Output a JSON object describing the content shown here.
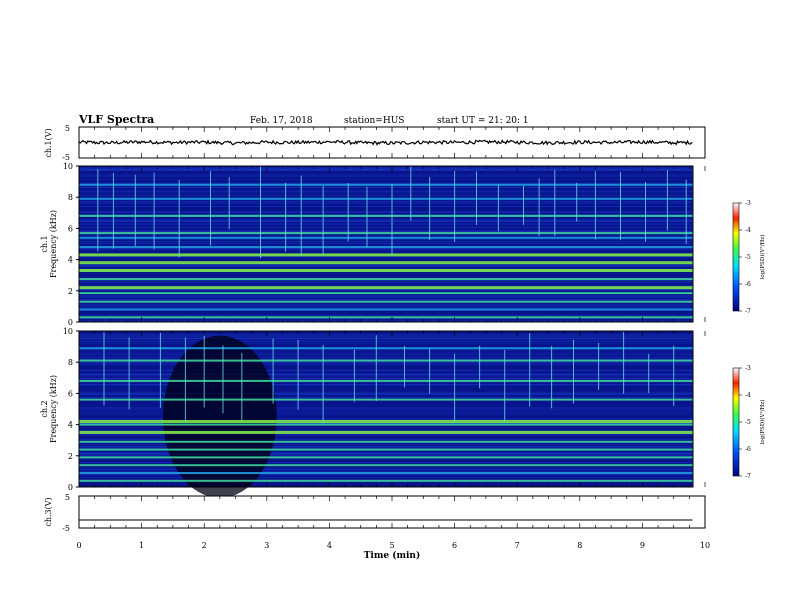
{
  "header": {
    "title": "VLF Spectra",
    "date": "Feb. 17, 2018",
    "station": "station=HUS",
    "start": "start  UT =   21: 20: 1"
  },
  "colors": {
    "spectrogram_background": "#08148c",
    "band_colors": [
      "#1a46d8",
      "#1e9be0",
      "#3cd29a",
      "#7ee84a"
    ],
    "colorbar": [
      "#00007a",
      "#0050ff",
      "#00e0ff",
      "#40ff40",
      "#ffff00",
      "#ff2000",
      "#ffffff"
    ]
  },
  "chart_data": [
    {
      "type": "line",
      "name": "ch1-waveform",
      "ylabel": "ch.1(V)",
      "ylim": [
        -5,
        5
      ],
      "yticks": [
        "5",
        "-5"
      ],
      "note_visible": "noisy waveform centered near 0",
      "x": [
        0,
        0.5,
        1,
        1.5,
        2,
        2.5,
        3,
        3.5,
        4,
        4.5,
        5,
        5.5,
        6,
        6.5,
        7,
        7.5,
        8,
        8.5,
        9,
        9.5,
        9.8
      ],
      "values": [
        0.1,
        -0.1,
        0.2,
        0.0,
        0.1,
        -0.2,
        0.1,
        0.0,
        0.2,
        -0.1,
        -0.2,
        0.1,
        0.0,
        0.2,
        0.1,
        -0.1,
        0.1,
        0.0,
        0.2,
        -0.1,
        0.0
      ]
    },
    {
      "type": "heatmap",
      "name": "ch1-spectrogram",
      "ylabel": "ch.1",
      "ylabel2": "Frequency (kHz)",
      "ylim": [
        0,
        10
      ],
      "yticks": [
        "0",
        "2",
        "4",
        "6",
        "8",
        "10"
      ],
      "colorbar": {
        "label": "log(PSD)(V²/Hz)",
        "ticks": [
          "-3",
          "-4",
          "-5",
          "-6",
          "-7"
        ],
        "range": [
          -7,
          -3
        ]
      },
      "bands_khz": [
        {
          "f": 0.3,
          "level": 2
        },
        {
          "f": 0.8,
          "level": 1
        },
        {
          "f": 1.3,
          "level": 2
        },
        {
          "f": 1.85,
          "level": 2
        },
        {
          "f": 2.2,
          "level": 3
        },
        {
          "f": 2.75,
          "level": 2
        },
        {
          "f": 3.3,
          "level": 3
        },
        {
          "f": 3.8,
          "level": 3
        },
        {
          "f": 4.3,
          "level": 3
        },
        {
          "f": 4.8,
          "level": 1
        },
        {
          "f": 5.4,
          "level": 1
        },
        {
          "f": 5.7,
          "level": 2
        },
        {
          "f": 6.8,
          "level": 2
        },
        {
          "f": 7.9,
          "level": 1
        },
        {
          "f": 8.8,
          "level": 1
        }
      ],
      "spikes_min": [
        0.3,
        0.55,
        0.9,
        1.2,
        1.6,
        2.1,
        2.4,
        2.9,
        3.3,
        3.55,
        3.9,
        4.3,
        4.6,
        5.0,
        5.3,
        5.6,
        6.0,
        6.35,
        6.7,
        7.1,
        7.35,
        7.6,
        7.95,
        8.25,
        8.65,
        9.05,
        9.4,
        9.7
      ]
    },
    {
      "type": "heatmap",
      "name": "ch2-spectrogram",
      "ylabel": "ch.2",
      "ylabel2": "Frequency (kHz)",
      "ylim": [
        0,
        10
      ],
      "yticks": [
        "0",
        "2",
        "4",
        "6",
        "8",
        "10"
      ],
      "colorbar": {
        "label": "log(PSD)(V²/Hz)",
        "ticks": [
          "-3",
          "-4",
          "-5",
          "-6",
          "-7"
        ],
        "range": [
          -7,
          -3
        ]
      },
      "bands_khz": [
        {
          "f": 0.4,
          "level": 2
        },
        {
          "f": 0.9,
          "level": 1
        },
        {
          "f": 1.4,
          "level": 2
        },
        {
          "f": 1.9,
          "level": 2
        },
        {
          "f": 2.4,
          "level": 2
        },
        {
          "f": 2.9,
          "level": 2
        },
        {
          "f": 3.5,
          "level": 3
        },
        {
          "f": 4.0,
          "level": 2
        },
        {
          "f": 4.2,
          "level": 3
        },
        {
          "f": 5.6,
          "level": 2
        },
        {
          "f": 6.8,
          "level": 2
        },
        {
          "f": 8.1,
          "level": 2
        },
        {
          "f": 8.9,
          "level": 1
        }
      ],
      "dark_region_min": [
        1.5,
        3.0
      ],
      "spikes_min": [
        0.4,
        0.8,
        1.3,
        1.7,
        2.0,
        2.3,
        2.6,
        3.1,
        3.5,
        3.9,
        4.4,
        4.75,
        5.2,
        5.6,
        6.0,
        6.4,
        6.8,
        7.2,
        7.55,
        7.9,
        8.3,
        8.7,
        9.1,
        9.5
      ]
    },
    {
      "type": "line",
      "name": "ch3-waveform",
      "ylabel": "ch.3(V)",
      "ylim": [
        -5,
        5
      ],
      "yticks": [
        "5",
        "-5"
      ],
      "x": [
        0,
        9.8
      ],
      "values": [
        -2.5,
        -2.5
      ]
    }
  ],
  "xaxis": {
    "label": "Time (min)",
    "ticks": [
      "0",
      "1",
      "2",
      "3",
      "4",
      "5",
      "6",
      "7",
      "8",
      "9",
      "10"
    ],
    "range": [
      0,
      10
    ]
  }
}
